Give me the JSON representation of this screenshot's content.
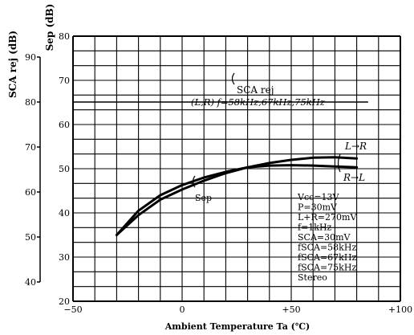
{
  "chart_data": {
    "type": "line",
    "title": "",
    "xlabel": "Ambient Temperature Ta (℃)",
    "ylabel_left": "SCA rej (dB)",
    "ylabel_right": "Sep (dB)",
    "xlim": [
      -50,
      100
    ],
    "x_ticks": [
      {
        "value": -50,
        "label": "−50"
      },
      {
        "value": 0,
        "label": "0"
      },
      {
        "value": 50,
        "label": "+50"
      },
      {
        "value": 100,
        "label": "+100"
      }
    ],
    "ylim_sep": [
      20,
      80
    ],
    "y_ticks_sep": [
      20,
      30,
      40,
      50,
      60,
      70,
      80
    ],
    "ylim_sca_rej": [
      40,
      90
    ],
    "y_ticks_sca_rej": [
      40,
      50,
      60,
      70,
      80,
      90
    ],
    "grid": true,
    "series": [
      {
        "name": "SCA rej",
        "axis": "sca_rej",
        "x": [
          -50,
          -25,
          0,
          25,
          50,
          75,
          85
        ],
        "y": [
          80,
          80,
          80,
          80,
          80,
          80,
          80
        ]
      },
      {
        "name": "Sep L→R",
        "axis": "sep",
        "x": [
          -30,
          -20,
          -10,
          0,
          10,
          20,
          30,
          40,
          50,
          60,
          70,
          80
        ],
        "y": [
          35,
          39.5,
          43,
          45.3,
          47.3,
          49,
          50.3,
          51.3,
          52,
          52.5,
          52.6,
          52.3
        ]
      },
      {
        "name": "Sep R→L",
        "axis": "sep",
        "x": [
          -30,
          -20,
          -10,
          0,
          10,
          20,
          30,
          40,
          50,
          60,
          70,
          80
        ],
        "y": [
          35,
          40.5,
          44,
          46.3,
          48,
          49.3,
          50.3,
          50.7,
          50.8,
          50.7,
          50.5,
          50.3
        ]
      }
    ],
    "annotations": {
      "sca_rej_label": "SCA rej",
      "sca_rej_cond": "(L,R) f=58kHz,67kHz,75kHz",
      "sep_label": "Sep",
      "lr_label": "L→R",
      "rl_label": "R→L",
      "conditions": [
        "Vcc=13V",
        "P=30mV",
        "L+R=270mV",
        "f=1kHz",
        "SCA=30mV",
        "fSCA=58kHz",
        "fSCA=67kHz",
        "fSCA=75kHz",
        "Stereo"
      ]
    }
  }
}
